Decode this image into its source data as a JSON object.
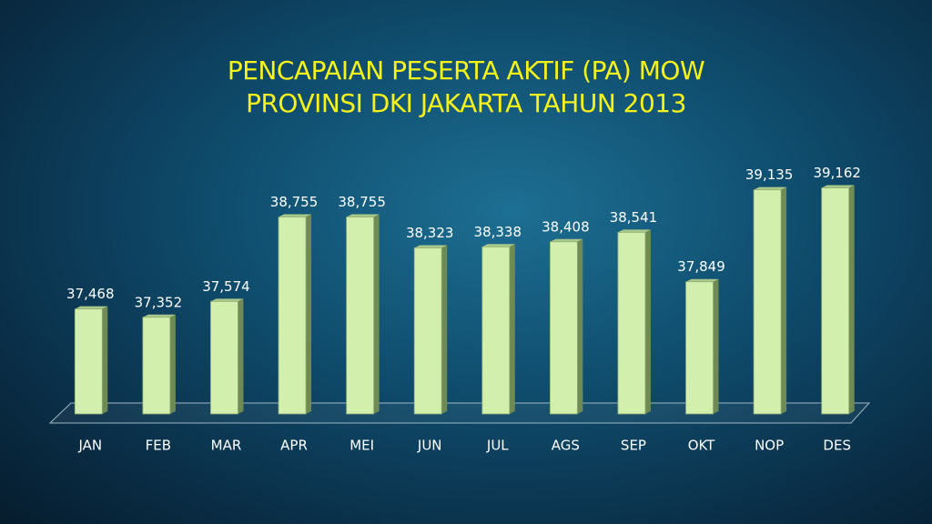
{
  "chart_data": {
    "type": "bar",
    "title": "PENCAPAIAN PESERTA AKTIF (PA) MOW PROVINSI DKI JAKARTA TAHUN 2013",
    "categories": [
      "JAN",
      "FEB",
      "MAR",
      "APR",
      "MEI",
      "JUN",
      "JUL",
      "AGS",
      "SEP",
      "OKT",
      "NOP",
      "DES"
    ],
    "values": [
      37468,
      37352,
      37574,
      38755,
      38755,
      38323,
      38338,
      38408,
      38541,
      37849,
      39135,
      39162
    ],
    "value_labels": [
      "37,468",
      "37,352",
      "37,574",
      "38,755",
      "38,755",
      "38,323",
      "38,338",
      "38,408",
      "38,541",
      "37,849",
      "39,135",
      "39,162"
    ],
    "color": "#d3efae",
    "ylim": [
      36000,
      39500
    ]
  }
}
